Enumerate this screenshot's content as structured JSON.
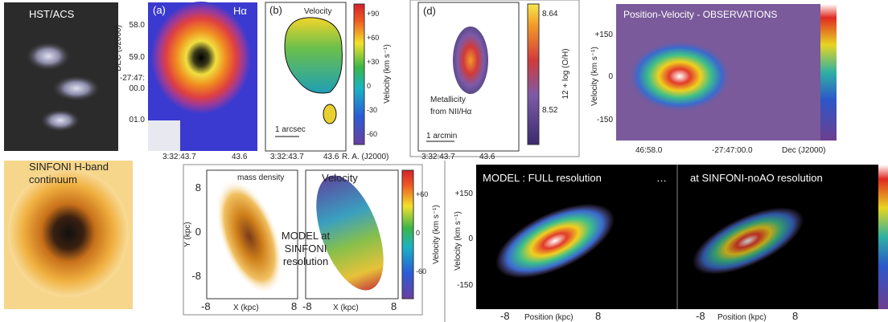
{
  "hst": {
    "label": "HST/ACS"
  },
  "panel_a": {
    "tag": "(a)",
    "line": "Hα",
    "y_axis": "DEC (J2000)",
    "y_ticks": [
      "58.0",
      "59.0",
      "-27:47:",
      "00.0",
      "01.0"
    ],
    "x_ticks": [
      "3:32:43.7",
      "43.6"
    ]
  },
  "panel_b": {
    "tag": "(b)",
    "title": "Velocity",
    "scale_bar": "1 arcsec",
    "x_ticks": [
      "3:32:43.7",
      "43.6",
      "R. A. (J2000)"
    ],
    "colorbar_ticks": [
      "+90",
      "+60",
      "+30",
      "0",
      "-30",
      "-60"
    ],
    "colorbar_label": "Velocity (km s⁻¹)"
  },
  "panel_d": {
    "tag": "(d)",
    "note_1": "Metallicity",
    "note_2": "from NII/Hα",
    "scale_bar": "1 arcmin",
    "x_ticks": [
      "3:32:43.7",
      "43.6"
    ],
    "colorbar_ticks": [
      "8.64",
      "8.52"
    ],
    "colorbar_label": "12 + log (O/H)"
  },
  "pv_obs": {
    "title": "Position-Velocity - OBSERVATIONS",
    "y_ticks": [
      "+150",
      "0",
      "-150"
    ],
    "y_axis": "Velocity (km s⁻¹)",
    "x_ticks": [
      "46:58.0",
      "-27:47:00.0"
    ],
    "x_axis": "Dec (J2000)"
  },
  "sinfoni": {
    "line_1": "SINFONI H-band",
    "line_2": "continuum"
  },
  "model": {
    "left_title": "mass density",
    "right_title": "Velocity",
    "y_ticks": [
      "8",
      "0",
      "-8"
    ],
    "y_axis": "Y (kpc)",
    "x_ticks_left": [
      "-8",
      "8"
    ],
    "x_axis_left": "X (kpc)",
    "x_ticks_right": [
      "-8",
      "8"
    ],
    "x_axis_right": "X (kpc)",
    "note": [
      "MODEL at",
      "SINFONI",
      "resolution"
    ],
    "colorbar_ticks": [
      "+60",
      "0",
      "-60"
    ],
    "colorbar_label": "Velocity (km s⁻¹)"
  },
  "model_pv": {
    "left_title": "MODEL :    FULL resolution",
    "dots": "…",
    "right_title": "at   SINFONI-noAO resolution",
    "y_ticks": [
      "+150",
      "0",
      "-150"
    ],
    "y_axis": "Velocity (km s⁻¹)",
    "x_ticks_left": [
      "-8",
      "8"
    ],
    "x_axis_left": "Position (kpc)",
    "x_ticks_right": [
      "-8",
      "8"
    ],
    "x_axis_right": "Position (kpc)"
  }
}
